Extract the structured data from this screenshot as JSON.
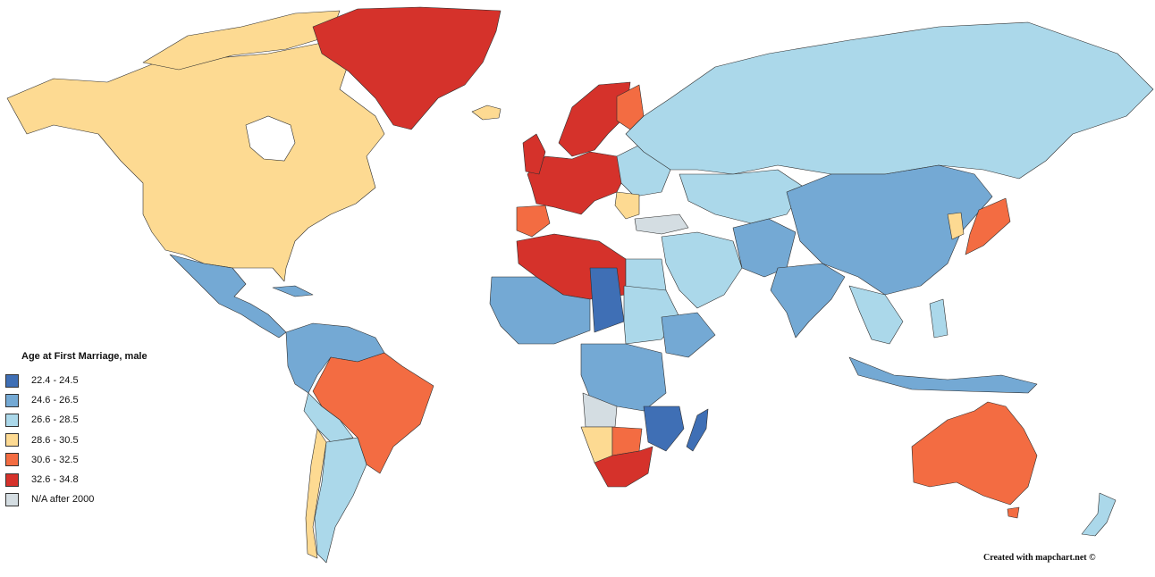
{
  "legend": {
    "title": "Age at First Marriage, male",
    "items": [
      {
        "label": "22.4 - 24.5",
        "color": "#3f6fb5"
      },
      {
        "label": "24.6 - 26.5",
        "color": "#74a9d4"
      },
      {
        "label": "26.6 - 28.5",
        "color": "#abd8ea"
      },
      {
        "label": "28.6 - 30.5",
        "color": "#fdda92"
      },
      {
        "label": "30.6 - 32.5",
        "color": "#f36c42"
      },
      {
        "label": "32.6 - 34.8",
        "color": "#d5322b"
      },
      {
        "label": "N/A after 2000",
        "color": "#d4dde2"
      }
    ]
  },
  "credit": "Created with mapchart.net ©",
  "regions": {
    "north_america": "28.6 - 30.5",
    "greenland": "32.6 - 34.8",
    "mexico_central_america": "24.6 - 26.5",
    "brazil": "30.6 - 32.5",
    "western_europe": "32.6 - 34.8",
    "russia": "26.6 - 28.5",
    "china": "24.6 - 26.5",
    "japan": "30.6 - 32.5",
    "australia": "30.6 - 32.5",
    "south_africa": "32.6 - 34.8",
    "madagascar": "22.4 - 24.5"
  }
}
